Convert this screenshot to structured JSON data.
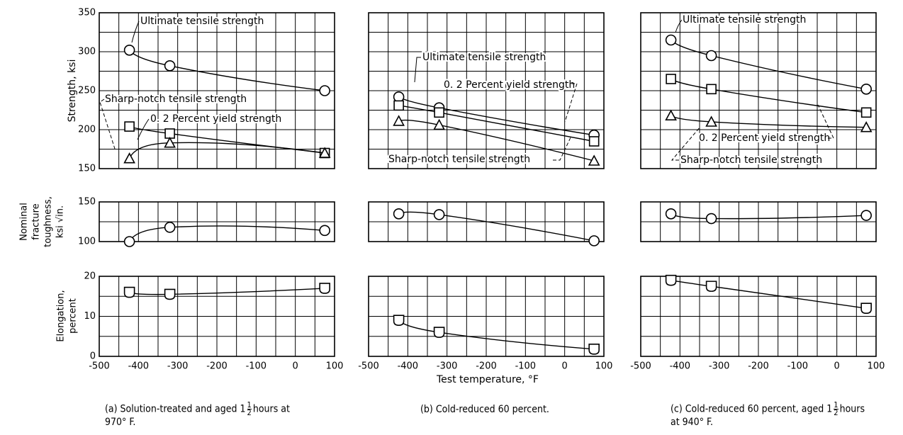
{
  "labels": {
    "strength_axis": "Strength, ksi",
    "toughness_axis": [
      "Nominal",
      "fracture",
      "toughness,",
      "ksi √in."
    ],
    "elongation_axis": [
      "Elongation,",
      "percent"
    ],
    "temperature_axis": "Test temperature, °F"
  },
  "captions": {
    "a_pre": "(a) Solution-treated and aged 1",
    "a_post": "hours at",
    "a_line2": "970° F.",
    "b": "(b) Cold-reduced 60 percent.",
    "c_pre": "(c) Cold-reduced 60 percent, aged 1",
    "c_post": "hours",
    "c_line2": "at 940° F.",
    "frac_num": "1",
    "frac_den": "2"
  },
  "chart_data": [
    {
      "type": "line",
      "panel": "(a)",
      "xlabel": "Test temperature, °F",
      "xlim": [
        -500,
        100
      ],
      "xticks": [
        -500,
        -400,
        -300,
        -200,
        -100,
        0,
        100
      ],
      "strength": {
        "ylabel": "Strength, ksi",
        "ylim": [
          150,
          350
        ],
        "yticks": [
          150,
          200,
          250,
          300,
          350
        ],
        "series": [
          {
            "name": "Ultimate tensile strength",
            "marker": "circle",
            "x": [
              -423,
              -320,
              75
            ],
            "y": [
              302,
              282,
              250
            ]
          },
          {
            "name": "0. 2 Percent yield strength",
            "marker": "square",
            "x": [
              -423,
              -320,
              75
            ],
            "y": [
              204,
              195,
              170
            ]
          },
          {
            "name": "Sharp-notch tensile strength",
            "marker": "triangle",
            "x": [
              -423,
              -320,
              75
            ],
            "y": [
              163,
              183,
              170
            ]
          }
        ]
      },
      "toughness": {
        "ylim": [
          100,
          150
        ],
        "yticks": [
          100,
          150
        ],
        "marker": "circle",
        "x": [
          -423,
          -320,
          75
        ],
        "y": [
          100,
          118,
          114
        ]
      },
      "elongation": {
        "ylim": [
          0,
          20
        ],
        "yticks": [
          0,
          10,
          20
        ],
        "marker": "shield",
        "x": [
          -423,
          -320,
          75
        ],
        "y": [
          16,
          15.5,
          17
        ]
      }
    },
    {
      "type": "line",
      "panel": "(b)",
      "xlabel": "Test temperature, °F",
      "xlim": [
        -500,
        100
      ],
      "xticks": [
        -500,
        -400,
        -300,
        -200,
        -100,
        0,
        100
      ],
      "strength": {
        "ylabel": "Strength, ksi",
        "ylim": [
          150,
          350
        ],
        "series": [
          {
            "name": "Ultimate tensile strength",
            "marker": "circle",
            "x": [
              -423,
              -320,
              75
            ],
            "y": [
              242,
              228,
              193
            ]
          },
          {
            "name": "0. 2 Percent yield strength",
            "marker": "square",
            "x": [
              -423,
              -320,
              75
            ],
            "y": [
              231,
              222,
              185
            ]
          },
          {
            "name": "Sharp-notch tensile strength",
            "marker": "triangle",
            "x": [
              -423,
              -320,
              75
            ],
            "y": [
              211,
              206,
              160
            ]
          }
        ]
      },
      "toughness": {
        "ylim": [
          100,
          150
        ],
        "marker": "circle",
        "x": [
          -423,
          -320,
          75
        ],
        "y": [
          135,
          134,
          101
        ]
      },
      "elongation": {
        "ylim": [
          0,
          20
        ],
        "marker": "shield",
        "x": [
          -423,
          -320,
          75
        ],
        "y": [
          9,
          6,
          1.8
        ]
      }
    },
    {
      "type": "line",
      "panel": "(c)",
      "xlabel": "Test temperature, °F",
      "xlim": [
        -500,
        100
      ],
      "xticks": [
        -500,
        -400,
        -300,
        -200,
        -100,
        0,
        100
      ],
      "strength": {
        "ylabel": "Strength, ksi",
        "ylim": [
          150,
          350
        ],
        "series": [
          {
            "name": "Ultimate tensile strength",
            "marker": "circle",
            "x": [
              -423,
              -320,
              75
            ],
            "y": [
              315,
              295,
              252
            ]
          },
          {
            "name": "0. 2 Percent yield strength",
            "marker": "square",
            "x": [
              -423,
              -320,
              75
            ],
            "y": [
              265,
              252,
              222
            ]
          },
          {
            "name": "Sharp-notch tensile strength",
            "marker": "triangle",
            "x": [
              -423,
              -320,
              75
            ],
            "y": [
              218,
              210,
              203
            ]
          }
        ]
      },
      "toughness": {
        "ylim": [
          100,
          150
        ],
        "marker": "circle",
        "x": [
          -423,
          -320,
          75
        ],
        "y": [
          135,
          129,
          133
        ]
      },
      "elongation": {
        "ylim": [
          0,
          20
        ],
        "marker": "shield",
        "x": [
          -423,
          -320,
          75
        ],
        "y": [
          19,
          17.5,
          12
        ]
      }
    }
  ]
}
